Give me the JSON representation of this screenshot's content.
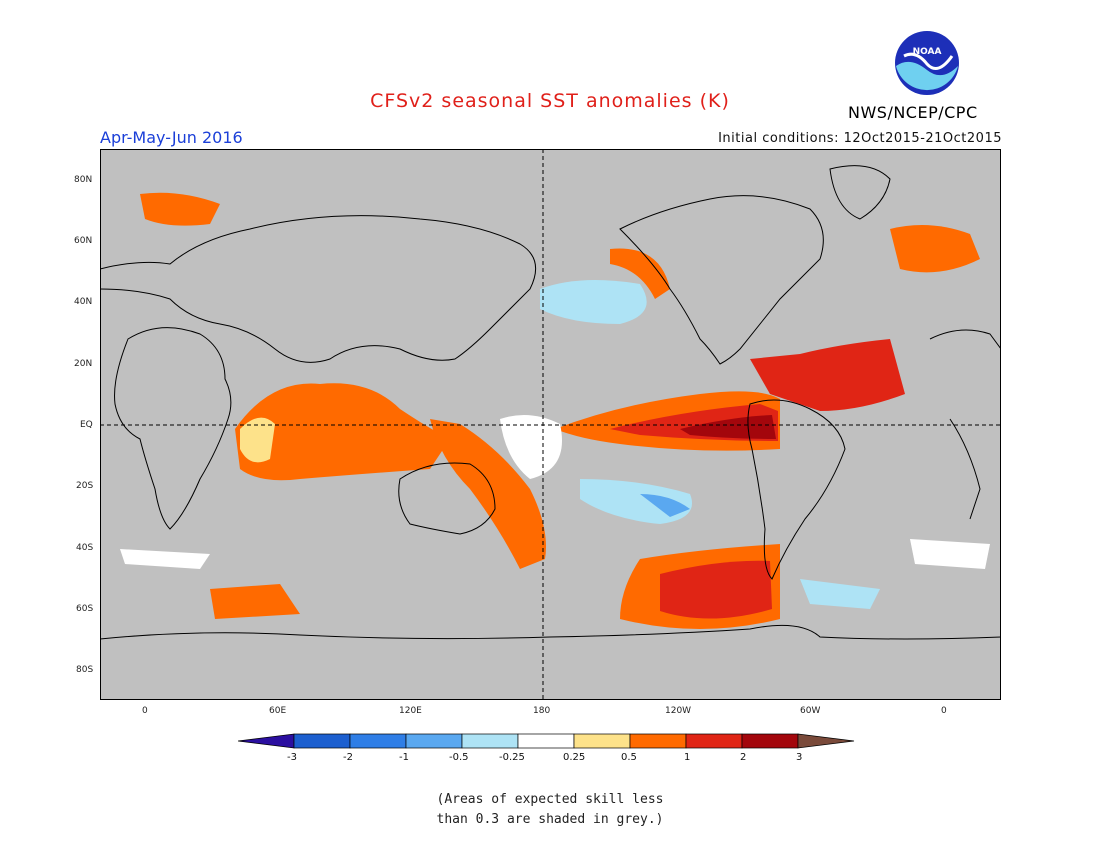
{
  "header": {
    "title": "CFSv2 seasonal SST anomalies (K)",
    "period": "Apr-May-Jun 2016",
    "initial_conditions": "Initial conditions: 12Oct2015-21Oct2015",
    "agency": "NWS/NCEP/CPC",
    "logo_text": "NOAA"
  },
  "map": {
    "lat_labels": [
      "80N",
      "60N",
      "40N",
      "20N",
      "EQ",
      "20S",
      "40S",
      "60S",
      "80S"
    ],
    "lon_labels": [
      "0",
      "60E",
      "120E",
      "180",
      "120W",
      "60W",
      "0"
    ],
    "colors": {
      "ocean_skill_low": "#c0c0c0",
      "land": "#c0c0c0",
      "coast": "#000000"
    }
  },
  "legend": {
    "labels": [
      "-3",
      "-2",
      "-1",
      "-0.5",
      "-0.25",
      "0.25",
      "0.5",
      "1",
      "2",
      "3"
    ],
    "colors": [
      "#2b0fa0",
      "#1c5fcf",
      "#2f7ee6",
      "#5aa8f0",
      "#aee3f5",
      "#ffffff",
      "#fde28a",
      "#ff6a00",
      "#e02515",
      "#a3060c",
      "#7a4a3a"
    ]
  },
  "note": {
    "line1": "(Areas of expected skill less",
    "line2": "than 0.3 are shaded in grey.)"
  }
}
